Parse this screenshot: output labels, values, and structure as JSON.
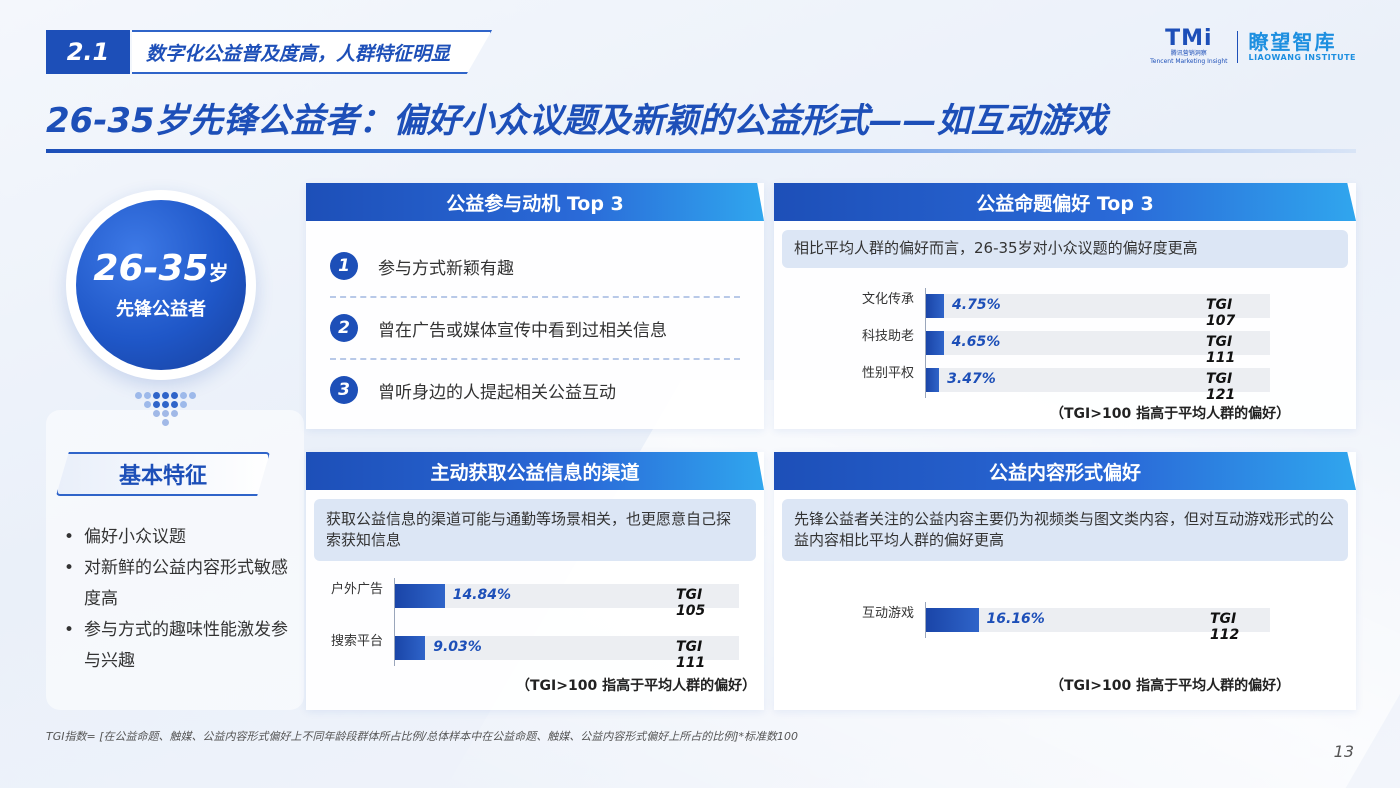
{
  "section": {
    "number": "2.1",
    "title": "数字化公益普及度高，人群特征明显"
  },
  "logo": {
    "tmi": "TMi",
    "tmi_sub": "腾讯营销洞察",
    "tmi_en": "Tencent Marketing Insight",
    "lw_cn": "瞭望智库",
    "lw_en": "LIAOWANG INSTITUTE"
  },
  "title": "26-35岁先锋公益者：偏好小众议题及新颖的公益形式——如互动游戏",
  "persona": {
    "age": "26-35",
    "age_unit": "岁",
    "label": "先锋公益者"
  },
  "features": {
    "title": "基本特征",
    "items": [
      "偏好小众议题",
      "对新鲜的公益内容形式敏感度高",
      "参与方式的趣味性能激发参与兴趣"
    ]
  },
  "motivation": {
    "title": "公益参与动机 Top 3",
    "items": [
      {
        "num": "1",
        "text": "参与方式新颖有趣"
      },
      {
        "num": "2",
        "text": "曾在广告或媒体宣传中看到过相关信息"
      },
      {
        "num": "3",
        "text": "曾听身边的人提起相关公益互动"
      }
    ]
  },
  "topics": {
    "title": "公益命题偏好 Top 3",
    "note": "相比平均人群的偏好而言，26-35岁对小众议题的偏好度更高",
    "tgi_note": "（TGI>100 指高于平均人群的偏好）"
  },
  "channels": {
    "title": "主动获取公益信息的渠道",
    "note": "获取公益信息的渠道可能与通勤等场景相关，也更愿意自己探索获知信息",
    "tgi_note": "（TGI>100 指高于平均人群的偏好）"
  },
  "formats": {
    "title": "公益内容形式偏好",
    "note": "先锋公益者关注的公益内容主要仍为视频类与图文类内容，但对互动游戏形式的公益内容相比平均人群的偏好更高",
    "tgi_note": "（TGI>100 指高于平均人群的偏好）"
  },
  "chart_data": [
    {
      "type": "bar",
      "orientation": "horizontal",
      "categories": [
        "文化传承",
        "科技助老",
        "性别平权"
      ],
      "values": [
        4.75,
        4.65,
        3.47
      ],
      "value_labels": [
        "4.75%",
        "4.65%",
        "3.47%"
      ],
      "tgi": [
        "TGI  107",
        "TGI  111",
        "TGI  121"
      ]
    },
    {
      "type": "bar",
      "orientation": "horizontal",
      "categories": [
        "户外广告",
        "搜索平台"
      ],
      "values": [
        14.84,
        9.03
      ],
      "value_labels": [
        "14.84%",
        "9.03%"
      ],
      "tgi": [
        "TGI  105",
        "TGI  111"
      ]
    },
    {
      "type": "bar",
      "orientation": "horizontal",
      "categories": [
        "互动游戏"
      ],
      "values": [
        16.16
      ],
      "value_labels": [
        "16.16%"
      ],
      "tgi": [
        "TGI  112"
      ]
    }
  ],
  "footnote": "TGI指数= [在公益命题、触媒、公益内容形式偏好上不同年龄段群体所占比例/总体样本中在公益命题、触媒、公益内容形式偏好上所占的比例]*标准数100",
  "page": "13"
}
